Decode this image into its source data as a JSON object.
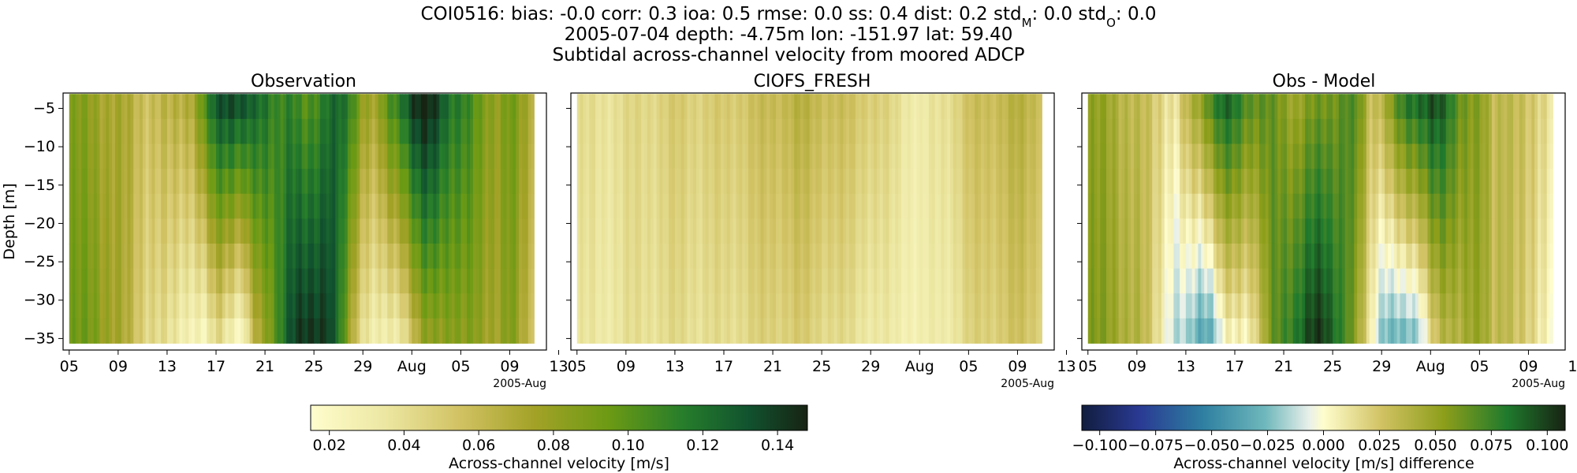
{
  "figure": {
    "title_lines": [
      "COI0516: bias: -0.0  corr: 0.3  ioa: 0.5  rmse: 0.0  ss: 0.4  dist: 0.2  std",
      "2005-07-04 depth: -4.75m lon: -151.97 lat: 59.40",
      "Subtidal across-channel velocity from moored ADCP"
    ],
    "std_m_sub": "M",
    "std_m_value": ": 0.0  std",
    "std_o_sub": "O",
    "std_o_value": ": 0.0"
  },
  "chart_data": [
    {
      "type": "heatmap",
      "title": "Observation",
      "ylabel": "Depth [m]",
      "ylim": [
        -36.5,
        -3
      ],
      "yticks": [
        -5,
        -10,
        -15,
        -20,
        -25,
        -30,
        -35
      ],
      "xticks": [
        "05",
        "09",
        "13",
        "17",
        "21",
        "25",
        "29",
        "Aug",
        "05",
        "09",
        "13"
      ],
      "x_offset_label": "2005-Aug",
      "x_start": "2005-07-05",
      "x_end": "2005-08-12",
      "x_axis_end": "2005-08-13",
      "depth_levels": [
        -4.75,
        -8.0,
        -11.25,
        -14.5,
        -17.75,
        -21.0,
        -24.25,
        -27.5,
        -30.75,
        -34.0
      ],
      "colormap": "speed",
      "clim": [
        0.015,
        0.148
      ],
      "colorbar_label": "Across-channel velocity [m/s]",
      "colorbar_ticks": [
        0.02,
        0.04,
        0.06,
        0.08,
        0.1,
        0.12,
        0.14
      ],
      "profile_days": [
        0,
        2,
        4,
        6,
        8,
        10,
        11,
        12,
        13,
        14,
        15,
        16,
        17,
        18,
        19,
        20,
        21,
        22,
        23,
        24,
        25,
        26,
        27,
        28,
        29,
        30,
        31,
        32,
        33,
        34,
        35,
        36,
        37,
        38
      ],
      "surface_values": [
        0.085,
        0.08,
        0.07,
        0.06,
        0.06,
        0.075,
        0.1,
        0.13,
        0.14,
        0.13,
        0.12,
        0.12,
        0.11,
        0.11,
        0.1,
        0.11,
        0.12,
        0.12,
        0.11,
        0.08,
        0.07,
        0.1,
        0.12,
        0.14,
        0.145,
        0.14,
        0.12,
        0.11,
        0.1,
        0.09,
        0.08,
        0.09,
        0.08,
        0.07
      ],
      "bottom_values": [
        0.09,
        0.09,
        0.07,
        0.05,
        0.035,
        0.03,
        0.02,
        0.045,
        0.035,
        0.02,
        0.06,
        0.085,
        0.11,
        0.13,
        0.14,
        0.145,
        0.14,
        0.11,
        0.07,
        0.04,
        0.025,
        0.03,
        0.04,
        0.06,
        0.08,
        0.085,
        0.09,
        0.08,
        0.085,
        0.08,
        0.075,
        0.085,
        0.07,
        0.06
      ]
    },
    {
      "type": "heatmap",
      "title": "CIOFS_FRESH",
      "ylim": [
        -36.5,
        -3
      ],
      "xticks": [
        "05",
        "09",
        "13",
        "17",
        "21",
        "25",
        "29",
        "Aug",
        "05",
        "09",
        "13"
      ],
      "x_offset_label": "2005-Aug",
      "x_start": "2005-07-05",
      "x_end": "2005-08-12",
      "x_axis_end": "2005-08-13",
      "depth_levels": [
        -4.75,
        -8.0,
        -11.25,
        -14.5,
        -17.75,
        -21.0,
        -24.25,
        -27.5,
        -30.75,
        -34.0
      ],
      "colormap": "speed",
      "clim": [
        0.015,
        0.148
      ],
      "profile_days": [
        0,
        2,
        4,
        6,
        8,
        10,
        12,
        14,
        16,
        18,
        20,
        22,
        24,
        26,
        28,
        30,
        32,
        34,
        36,
        38
      ],
      "surface_values": [
        0.04,
        0.038,
        0.042,
        0.045,
        0.05,
        0.048,
        0.05,
        0.055,
        0.06,
        0.065,
        0.06,
        0.055,
        0.05,
        0.04,
        0.03,
        0.04,
        0.055,
        0.06,
        0.065,
        0.06
      ],
      "bottom_values": [
        0.035,
        0.033,
        0.038,
        0.04,
        0.042,
        0.04,
        0.04,
        0.045,
        0.048,
        0.05,
        0.045,
        0.04,
        0.035,
        0.03,
        0.028,
        0.032,
        0.045,
        0.05,
        0.055,
        0.05
      ]
    },
    {
      "type": "heatmap",
      "title": "Obs - Model",
      "ylim": [
        -36.5,
        -3
      ],
      "xticks": [
        "05",
        "09",
        "13",
        "17",
        "21",
        "25",
        "29",
        "Aug",
        "05",
        "09",
        "13"
      ],
      "x_offset_label": "2005-Aug",
      "x_start": "2005-07-05",
      "x_end": "2005-08-12",
      "x_axis_end": "2005-08-13",
      "depth_levels": [
        -4.75,
        -8.0,
        -11.25,
        -14.5,
        -17.75,
        -21.0,
        -24.25,
        -27.5,
        -30.75,
        -34.0
      ],
      "colormap": "delta",
      "clim": [
        -0.108,
        0.108
      ],
      "colorbar_label": "Across-channel velocity [m/s] difference",
      "colorbar_ticks": [
        "−0.100",
        "−0.075",
        "−0.050",
        "−0.025",
        "0.000",
        "0.025",
        "0.050",
        "0.075",
        "0.100"
      ],
      "profile_days": [
        0,
        2,
        4,
        6,
        7,
        8,
        9,
        10,
        11,
        12,
        13,
        14,
        15,
        16,
        17,
        18,
        19,
        20,
        21,
        22,
        23,
        24,
        25,
        26,
        27,
        28,
        29,
        30,
        31,
        32,
        33,
        34,
        35,
        36,
        37,
        38
      ],
      "surface_values": [
        0.05,
        0.045,
        0.03,
        0.02,
        0.01,
        0.03,
        0.05,
        0.075,
        0.085,
        0.08,
        0.07,
        0.065,
        0.06,
        0.055,
        0.05,
        0.055,
        0.06,
        0.065,
        0.07,
        0.06,
        0.03,
        0.04,
        0.06,
        0.08,
        0.09,
        0.095,
        0.085,
        0.07,
        0.06,
        0.05,
        0.03,
        0.04,
        0.03,
        0.02,
        0.02,
        0.015
      ],
      "bottom_values": [
        0.055,
        0.05,
        0.035,
        0.01,
        -0.015,
        -0.02,
        -0.03,
        -0.025,
        0.0,
        0.005,
        0.01,
        0.03,
        0.06,
        0.075,
        0.085,
        0.095,
        0.1,
        0.09,
        0.07,
        0.04,
        0.01,
        -0.02,
        -0.03,
        -0.025,
        -0.01,
        0.02,
        0.035,
        0.04,
        0.05,
        0.045,
        0.03,
        0.04,
        0.025,
        0.015,
        0.01,
        0.005
      ]
    }
  ]
}
